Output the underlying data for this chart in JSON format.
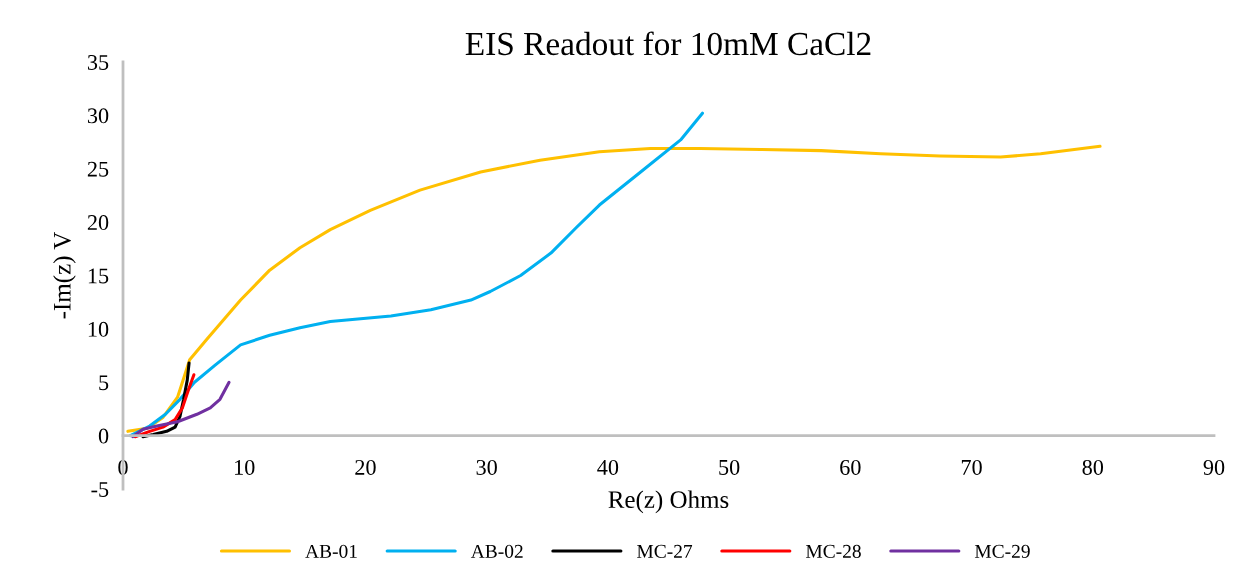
{
  "chart_data": {
    "type": "line",
    "title": "EIS Readout for 10mM CaCl2",
    "xlabel": "Re(z) Ohms",
    "ylabel": "-Im(z) V",
    "xlim": [
      0,
      90
    ],
    "xticks": [
      0,
      10,
      20,
      30,
      40,
      50,
      60,
      70,
      80,
      90
    ],
    "ylim": [
      -5,
      35
    ],
    "yticks": [
      -5,
      0,
      5,
      10,
      15,
      20,
      25,
      30,
      35
    ],
    "grid": false,
    "legend": "bottom",
    "marker": "none",
    "line_style": "solid",
    "series": [
      {
        "name": "AB-01",
        "color": "#ffc000",
        "x": [
          0.4,
          2.0,
          3.3,
          4.5,
          5.5,
          6.9,
          9.7,
          12.1,
          14.6,
          17.1,
          20.4,
          24.5,
          29.5,
          34.4,
          39.3,
          43.5,
          47.6,
          52.6,
          57.6,
          62.5,
          67.4,
          72.4,
          75.7,
          80.6
        ],
        "values": [
          0.4,
          0.7,
          1.7,
          3.6,
          7.1,
          9.0,
          12.7,
          15.5,
          17.6,
          19.3,
          21.1,
          23.0,
          24.7,
          25.8,
          26.6,
          26.9,
          26.9,
          26.8,
          26.7,
          26.4,
          26.2,
          26.1,
          26.4,
          27.1
        ]
      },
      {
        "name": "AB-02",
        "color": "#00b0f0",
        "x": [
          0.6,
          2.2,
          3.5,
          4.7,
          5.9,
          7.6,
          9.7,
          12.1,
          14.6,
          17.1,
          22.1,
          25.4,
          28.7,
          30.3,
          32.8,
          35.3,
          37.4,
          39.3,
          42.7,
          46.0,
          47.8
        ],
        "values": [
          0.0,
          0.9,
          2.0,
          3.4,
          5.0,
          6.6,
          8.5,
          9.4,
          10.1,
          10.7,
          11.2,
          11.8,
          12.7,
          13.5,
          15.0,
          17.1,
          19.5,
          21.6,
          24.7,
          27.7,
          30.2
        ]
      },
      {
        "name": "MC-27",
        "color": "#000000",
        "x": [
          1.65,
          2.5,
          3.6,
          4.3,
          4.7,
          5.0,
          5.3,
          5.45
        ],
        "values": [
          -0.1,
          0.1,
          0.4,
          0.8,
          1.8,
          3.4,
          5.2,
          6.8
        ]
      },
      {
        "name": "MC-28",
        "color": "#ff0000",
        "x": [
          1.0,
          2.2,
          3.3,
          4.3,
          4.9,
          5.4,
          5.85
        ],
        "values": [
          -0.1,
          0.4,
          0.8,
          1.5,
          2.6,
          4.3,
          5.7
        ]
      },
      {
        "name": "MC-29",
        "color": "#7030a0",
        "x": [
          0.8,
          1.65,
          2.8,
          4.5,
          6.1,
          7.2,
          8.0,
          8.75
        ],
        "values": [
          -0.1,
          0.6,
          0.9,
          1.3,
          2.0,
          2.6,
          3.4,
          5.0
        ]
      }
    ]
  }
}
